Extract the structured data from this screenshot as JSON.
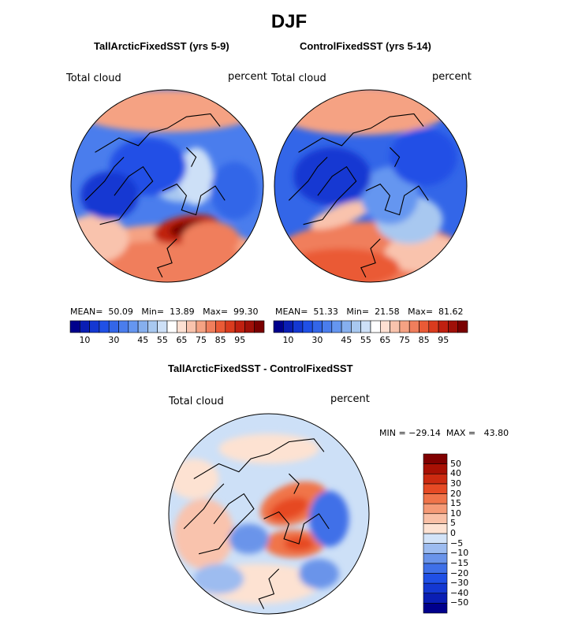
{
  "figure": {
    "title": "DJF"
  },
  "panels": [
    {
      "title": "TallArcticFixedSST (yrs 5-9)",
      "field": "Total cloud",
      "units": "percent",
      "stats": "MEAN=  50.09   Min=  13.89   Max=  99.30"
    },
    {
      "title": "ControlFixedSST (yrs 5-14)",
      "field": "Total cloud",
      "units": "percent",
      "stats": "MEAN=  51.33   Min=  21.58   Max=  81.62"
    },
    {
      "title": "TallArcticFixedSST - ControlFixedSST",
      "field": "Total cloud",
      "units": "percent",
      "stats": "MIN = −29.14  MAX =   43.80"
    }
  ],
  "chart_data": [
    {
      "type": "heatmap",
      "projection": "north polar stereographic",
      "title": "TallArcticFixedSST (yrs 5-9)",
      "field": "Total cloud",
      "units": "percent",
      "mean": 50.09,
      "min": 13.89,
      "max": 99.3,
      "colorbar": {
        "levels": [
          5,
          10,
          15,
          20,
          25,
          30,
          35,
          40,
          45,
          50,
          55,
          60,
          65,
          70,
          75,
          80,
          85,
          90,
          95
        ],
        "tick_labels": [
          "10",
          "30",
          "45",
          "55",
          "65",
          "75",
          "85",
          "95"
        ],
        "colors": [
          "#00008c",
          "#0a1eb4",
          "#1438d2",
          "#2050e6",
          "#3366e8",
          "#4a7ded",
          "#6596f0",
          "#86afee",
          "#a8c8f0",
          "#cde0f7",
          "#ffffff",
          "#fde0d2",
          "#f9c3ad",
          "#f5a283",
          "#f07e5c",
          "#ea5a36",
          "#da3b1e",
          "#c02010",
          "#a01008",
          "#7a0000"
        ]
      }
    },
    {
      "type": "heatmap",
      "projection": "north polar stereographic",
      "title": "ControlFixedSST (yrs 5-14)",
      "field": "Total cloud",
      "units": "percent",
      "mean": 51.33,
      "min": 21.58,
      "max": 81.62,
      "colorbar": {
        "levels": [
          5,
          10,
          15,
          20,
          25,
          30,
          35,
          40,
          45,
          50,
          55,
          60,
          65,
          70,
          75,
          80,
          85,
          90,
          95
        ],
        "tick_labels": [
          "10",
          "30",
          "45",
          "55",
          "65",
          "75",
          "85",
          "95"
        ],
        "colors": [
          "#00008c",
          "#0a1eb4",
          "#1438d2",
          "#2050e6",
          "#3366e8",
          "#4a7ded",
          "#6596f0",
          "#86afee",
          "#a8c8f0",
          "#cde0f7",
          "#ffffff",
          "#fde0d2",
          "#f9c3ad",
          "#f5a283",
          "#f07e5c",
          "#ea5a36",
          "#da3b1e",
          "#c02010",
          "#a01008",
          "#7a0000"
        ]
      }
    },
    {
      "type": "heatmap",
      "projection": "north polar stereographic",
      "title": "TallArcticFixedSST - ControlFixedSST",
      "field": "Total cloud",
      "units": "percent",
      "min": -29.14,
      "max": 43.8,
      "colorbar": {
        "orientation": "vertical",
        "levels": [
          -50,
          -40,
          -30,
          -20,
          -15,
          -10,
          -5,
          0,
          5,
          10,
          15,
          20,
          30,
          40,
          50
        ],
        "tick_labels": [
          "−50",
          "−40",
          "−30",
          "−20",
          "−15",
          "−10",
          "−5",
          "0",
          "5",
          "10",
          "15",
          "20",
          "30",
          "40",
          "50"
        ],
        "colors": [
          "#00008c",
          "#0a1eb4",
          "#1438d2",
          "#2050e6",
          "#3f70e8",
          "#6a94ea",
          "#9dbcf0",
          "#d2e3f8",
          "#fde2d2",
          "#f9c0a6",
          "#f59a76",
          "#f0744a",
          "#e64a24",
          "#cc2a10",
          "#a81004",
          "#800000"
        ]
      }
    }
  ]
}
